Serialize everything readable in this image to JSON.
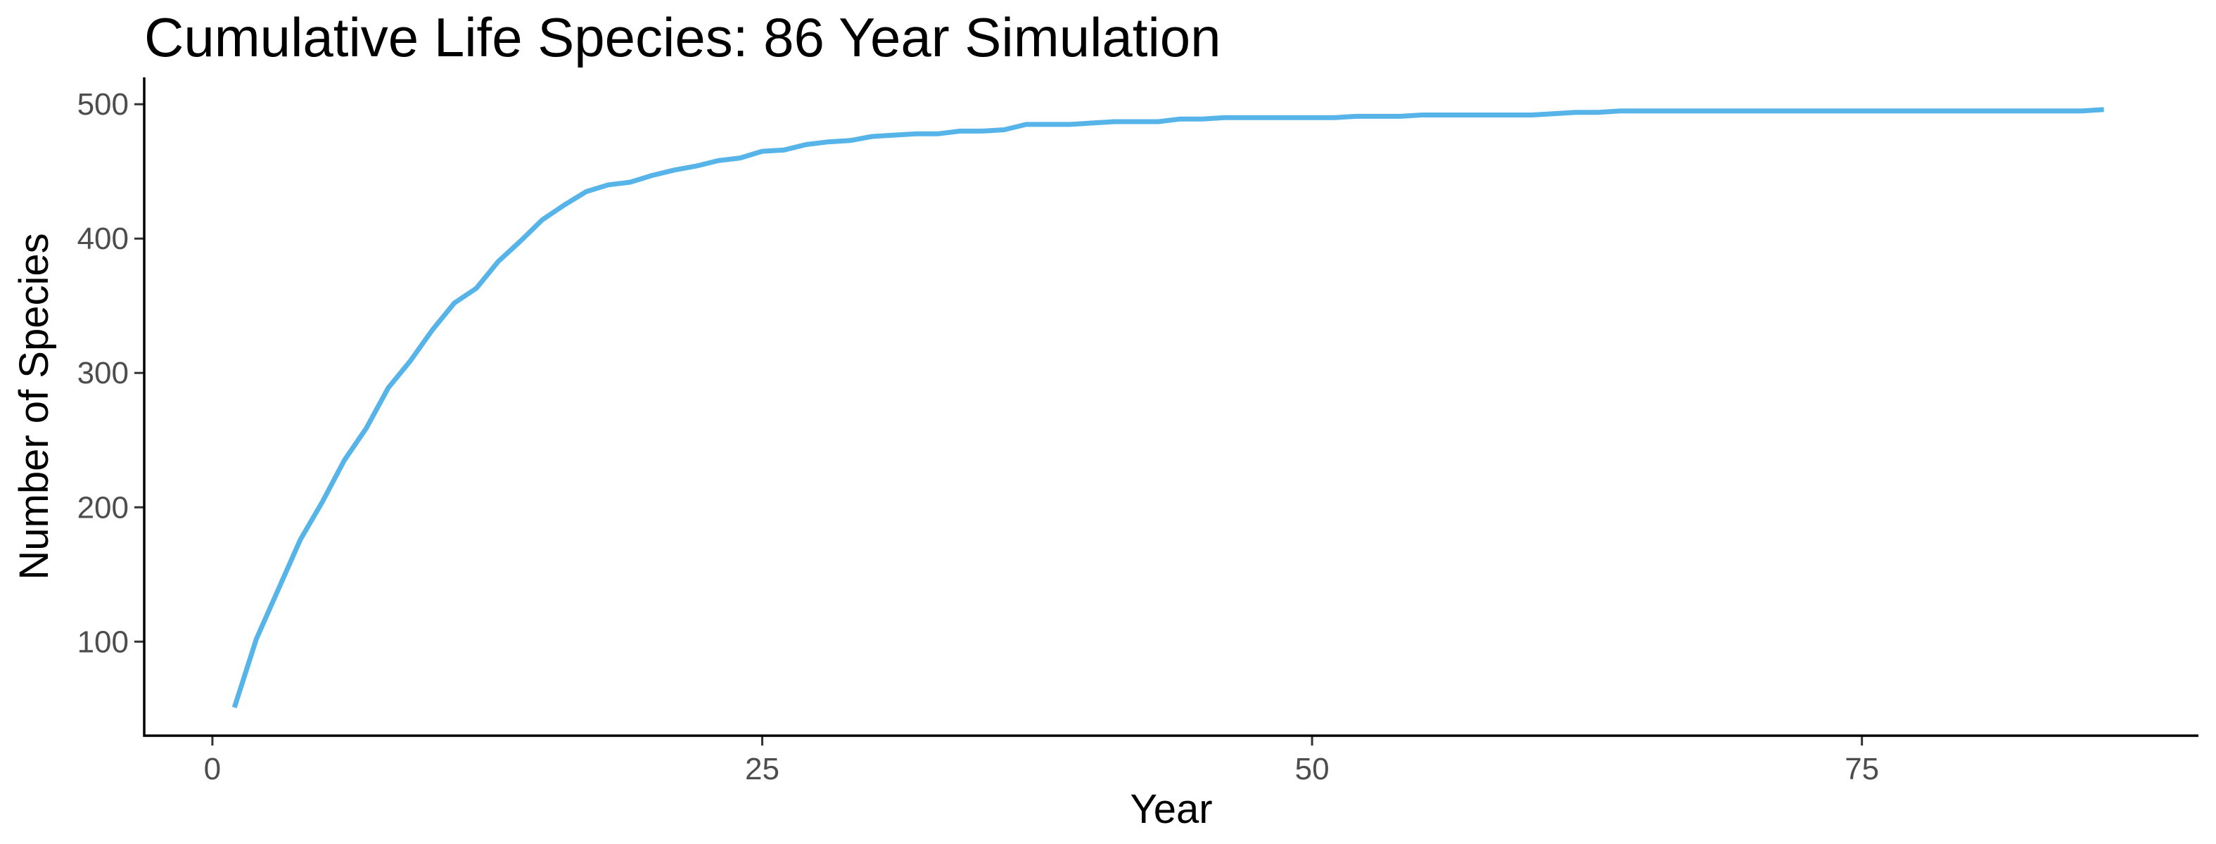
{
  "chart_data": {
    "type": "line",
    "title": "Cumulative Life Species: 86 Year Simulation",
    "xlabel": "Year",
    "ylabel": "Number of Species",
    "xlim": [
      -3.1,
      90.3
    ],
    "ylim": [
      30,
      520
    ],
    "x_ticks": [
      0,
      25,
      50,
      75
    ],
    "y_ticks": [
      100,
      200,
      300,
      400,
      500
    ],
    "grid": false,
    "legend": "none",
    "series": [
      {
        "color": "#56B4E9",
        "points": [
          [
            1,
            51
          ],
          [
            2,
            102
          ],
          [
            3,
            139
          ],
          [
            4,
            176
          ],
          [
            5,
            204
          ],
          [
            6,
            235
          ],
          [
            7,
            259
          ],
          [
            8,
            289
          ],
          [
            9,
            309
          ],
          [
            10,
            332
          ],
          [
            11,
            352
          ],
          [
            12,
            363
          ],
          [
            13,
            383
          ],
          [
            14,
            398
          ],
          [
            15,
            414
          ],
          [
            16,
            425
          ],
          [
            17,
            435
          ],
          [
            18,
            440
          ],
          [
            19,
            442
          ],
          [
            20,
            447
          ],
          [
            21,
            451
          ],
          [
            22,
            454
          ],
          [
            23,
            458
          ],
          [
            24,
            460
          ],
          [
            25,
            465
          ],
          [
            26,
            466
          ],
          [
            27,
            470
          ],
          [
            28,
            472
          ],
          [
            29,
            473
          ],
          [
            30,
            476
          ],
          [
            31,
            477
          ],
          [
            32,
            478
          ],
          [
            33,
            478
          ],
          [
            34,
            480
          ],
          [
            35,
            480
          ],
          [
            36,
            481
          ],
          [
            37,
            485
          ],
          [
            38,
            485
          ],
          [
            39,
            485
          ],
          [
            40,
            486
          ],
          [
            41,
            487
          ],
          [
            42,
            487
          ],
          [
            43,
            487
          ],
          [
            44,
            489
          ],
          [
            45,
            489
          ],
          [
            46,
            490
          ],
          [
            47,
            490
          ],
          [
            48,
            490
          ],
          [
            49,
            490
          ],
          [
            50,
            490
          ],
          [
            51,
            490
          ],
          [
            52,
            491
          ],
          [
            53,
            491
          ],
          [
            54,
            491
          ],
          [
            55,
            492
          ],
          [
            56,
            492
          ],
          [
            57,
            492
          ],
          [
            58,
            492
          ],
          [
            59,
            492
          ],
          [
            60,
            492
          ],
          [
            61,
            493
          ],
          [
            62,
            494
          ],
          [
            63,
            494
          ],
          [
            64,
            495
          ],
          [
            65,
            495
          ],
          [
            66,
            495
          ],
          [
            67,
            495
          ],
          [
            68,
            495
          ],
          [
            69,
            495
          ],
          [
            70,
            495
          ],
          [
            71,
            495
          ],
          [
            72,
            495
          ],
          [
            73,
            495
          ],
          [
            74,
            495
          ],
          [
            75,
            495
          ],
          [
            76,
            495
          ],
          [
            77,
            495
          ],
          [
            78,
            495
          ],
          [
            79,
            495
          ],
          [
            80,
            495
          ],
          [
            81,
            495
          ],
          [
            82,
            495
          ],
          [
            83,
            495
          ],
          [
            84,
            495
          ],
          [
            85,
            495
          ],
          [
            86,
            496
          ]
        ]
      }
    ]
  }
}
